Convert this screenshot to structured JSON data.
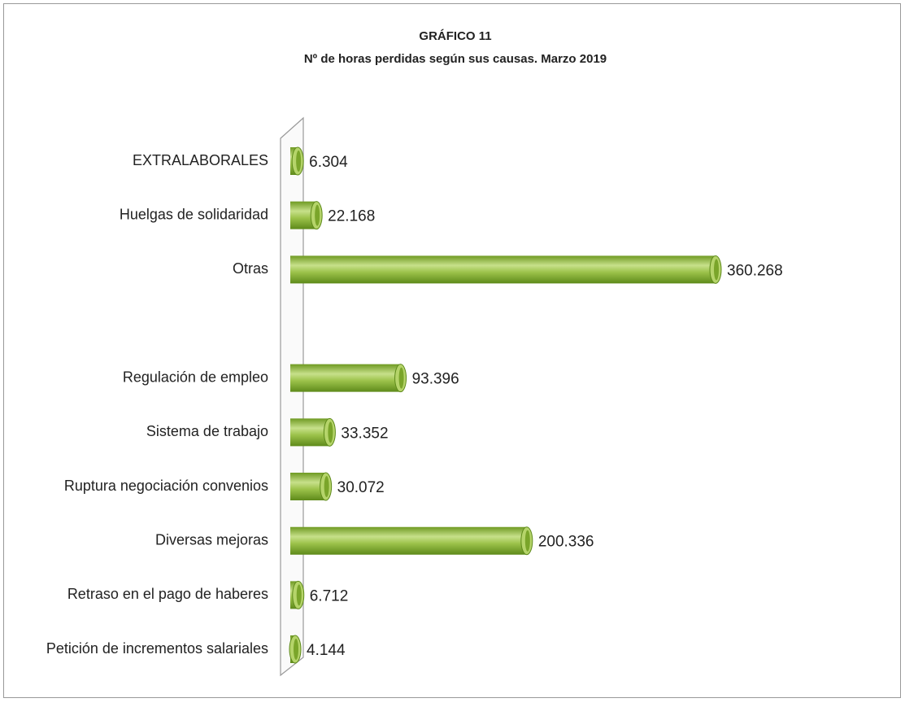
{
  "chart_data": {
    "type": "bar",
    "orientation": "horizontal",
    "title": "GRÁFICO 11",
    "subtitle": "Nº de horas perdidas según sus causas. Marzo 2019",
    "categories": [
      "EXTRALABORALES",
      "Huelgas de solidaridad",
      "Otras",
      null,
      "Regulación de empleo",
      "Sistema de trabajo",
      "Ruptura negociación convenios",
      "Diversas mejoras ",
      "Retraso en el pago de haberes",
      "Petición de incrementos salariales"
    ],
    "values": [
      6304,
      22168,
      360268,
      null,
      93396,
      33352,
      30072,
      200336,
      6712,
      4144
    ],
    "value_labels": [
      "6.304",
      "22.168",
      "360.268",
      null,
      "93.396",
      "33.352",
      "30.072",
      "200.336",
      "6.712",
      "4.144"
    ],
    "color": "#8db33a"
  }
}
